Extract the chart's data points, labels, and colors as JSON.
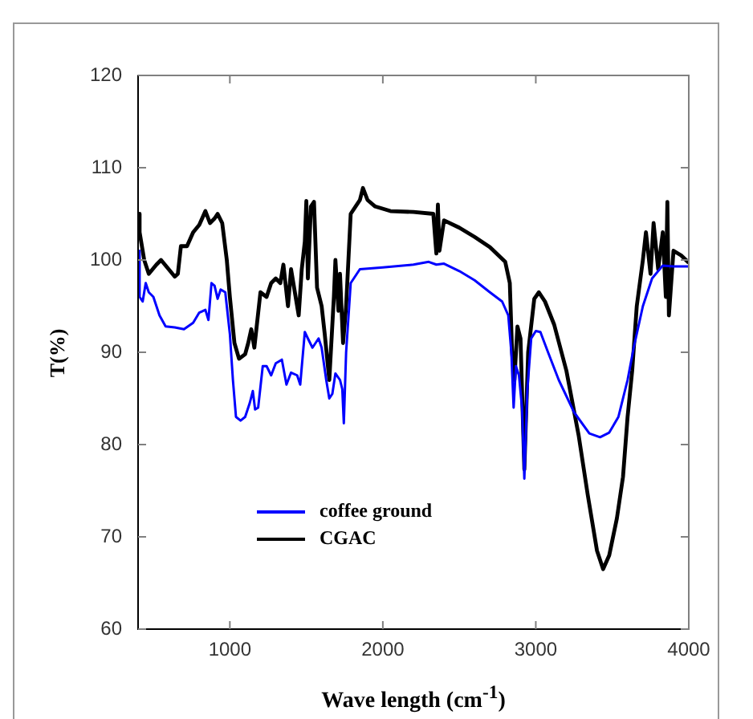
{
  "chart_data": {
    "type": "line",
    "xlabel": "Wave length (cm$^{-1}$)",
    "ylabel": "T(%)",
    "xlim": [
      400,
      4000
    ],
    "xticks": [
      1000,
      2000,
      3000,
      4000
    ],
    "ylim": [
      60,
      120
    ],
    "yticks": [
      60,
      70,
      80,
      90,
      100,
      110,
      120
    ],
    "grid": false,
    "legend": "bottom left",
    "marker": "none",
    "line_style": "solid",
    "series": [
      {
        "name": "coffee ground",
        "color": "#0000ff",
        "x": [
          400,
          410,
          430,
          450,
          470,
          500,
          540,
          580,
          640,
          700,
          760,
          800,
          840,
          860,
          880,
          900,
          920,
          940,
          970,
          1000,
          1020,
          1040,
          1070,
          1100,
          1130,
          1150,
          1165,
          1185,
          1215,
          1240,
          1270,
          1300,
          1340,
          1370,
          1400,
          1440,
          1460,
          1490,
          1510,
          1540,
          1580,
          1600,
          1630,
          1650,
          1670,
          1690,
          1720,
          1735,
          1745,
          1760,
          1790,
          1850,
          2000,
          2200,
          2300,
          2350,
          2400,
          2500,
          2600,
          2700,
          2780,
          2820,
          2840,
          2855,
          2870,
          2890,
          2910,
          2925,
          2945,
          2970,
          3000,
          3030,
          3080,
          3150,
          3250,
          3350,
          3420,
          3480,
          3540,
          3600,
          3640,
          3700,
          3760,
          3830,
          3900,
          4000
        ],
        "values": [
          101,
          96,
          95.5,
          97.5,
          96.5,
          96,
          94,
          92.8,
          92.7,
          92.5,
          93.2,
          94.3,
          94.6,
          93.5,
          97.5,
          97.2,
          95.8,
          96.8,
          96.5,
          92,
          87,
          83,
          82.6,
          83,
          84.5,
          85.8,
          83.8,
          84,
          88.5,
          88.5,
          87.5,
          88.8,
          89.2,
          86.5,
          87.8,
          87.5,
          86.5,
          92.2,
          91.5,
          90.5,
          91.5,
          90.5,
          87,
          85,
          85.5,
          87.7,
          87,
          86,
          82.3,
          90,
          97.5,
          99,
          99.2,
          99.5,
          99.8,
          99.5,
          99.6,
          98.8,
          97.8,
          96.5,
          95.5,
          94,
          90,
          84,
          88.5,
          87.5,
          84,
          76.3,
          86,
          91.5,
          92.3,
          92.2,
          90,
          87,
          83.5,
          81.2,
          80.8,
          81.3,
          83,
          87,
          90.5,
          95,
          98,
          99.4,
          99.3,
          99.3
        ]
      },
      {
        "name": "CGAC",
        "color": "#000000",
        "x": [
          400,
          410,
          440,
          470,
          520,
          550,
          600,
          640,
          660,
          680,
          720,
          760,
          800,
          840,
          870,
          900,
          920,
          950,
          980,
          1000,
          1030,
          1060,
          1100,
          1120,
          1140,
          1160,
          1200,
          1240,
          1270,
          1300,
          1330,
          1350,
          1380,
          1400,
          1420,
          1450,
          1470,
          1490,
          1500,
          1510,
          1530,
          1550,
          1570,
          1600,
          1620,
          1650,
          1680,
          1690,
          1710,
          1720,
          1740,
          1760,
          1790,
          1850,
          1870,
          1900,
          1950,
          2050,
          2200,
          2330,
          2350,
          2360,
          2370,
          2400,
          2500,
          2600,
          2700,
          2800,
          2830,
          2845,
          2860,
          2880,
          2900,
          2925,
          2950,
          2990,
          3020,
          3060,
          3120,
          3200,
          3280,
          3340,
          3400,
          3440,
          3480,
          3530,
          3570,
          3600,
          3630,
          3660,
          3700,
          3720,
          3750,
          3770,
          3800,
          3830,
          3850,
          3860,
          3870,
          3900,
          3950,
          4000
        ],
        "values": [
          105,
          103,
          100,
          98.5,
          99.5,
          100,
          99,
          98.2,
          98.5,
          101.5,
          101.5,
          103,
          103.8,
          105.3,
          104,
          104.5,
          105,
          104,
          100,
          96,
          91,
          89.3,
          89.8,
          91,
          92.5,
          90.5,
          96.5,
          96,
          97.5,
          98,
          97.5,
          99.5,
          95,
          99,
          97,
          94,
          99,
          102,
          106.4,
          98,
          105.8,
          106.3,
          97,
          95,
          92,
          87,
          96,
          100,
          94.5,
          98.5,
          91,
          95,
          105,
          106.5,
          107.8,
          106.5,
          105.8,
          105.3,
          105.2,
          105,
          100.7,
          106,
          101,
          104.3,
          103.5,
          102.5,
          101.4,
          99.8,
          97.5,
          90,
          87,
          92.8,
          91.5,
          77.3,
          90,
          95.8,
          96.5,
          95.5,
          93,
          88,
          81,
          74.5,
          68.5,
          66.5,
          68,
          72,
          76.5,
          83,
          88,
          95,
          100,
          103,
          98.5,
          104,
          99,
          103,
          96,
          106.3,
          94,
          101,
          100.5,
          99.7
        ]
      }
    ]
  }
}
